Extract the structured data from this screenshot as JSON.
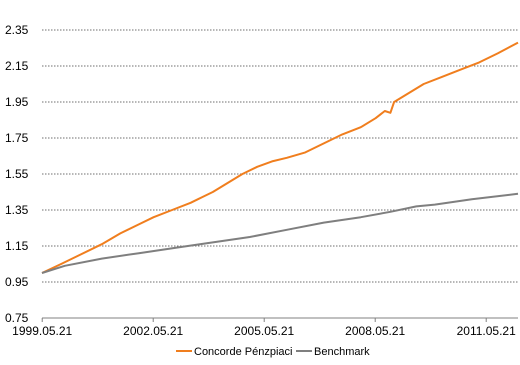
{
  "chart_data": {
    "type": "line",
    "title": "",
    "xlabel": "",
    "ylabel": "",
    "x_ticks": [
      "1999.05.21",
      "2002.05.21",
      "2005.05.21",
      "2008.05.21",
      "2011.05.21"
    ],
    "y_ticks": [
      "0.75",
      "0.95",
      "1.15",
      "1.35",
      "1.55",
      "1.75",
      "1.95",
      "2.15",
      "2.35"
    ],
    "xlim": [
      1999.385,
      2012.25
    ],
    "ylim": [
      0.75,
      2.45
    ],
    "grid": true,
    "grid_style": "dotted-horizontal",
    "legend_position": "bottom",
    "series": [
      {
        "name": "Concorde Pénzpiaci",
        "color": "#F07E1E",
        "points": [
          [
            1999.385,
            1.0
          ],
          [
            1999.9,
            1.05
          ],
          [
            2000.4,
            1.1
          ],
          [
            2001.0,
            1.16
          ],
          [
            2001.5,
            1.22
          ],
          [
            2002.0,
            1.27
          ],
          [
            2002.4,
            1.31
          ],
          [
            2002.9,
            1.35
          ],
          [
            2003.4,
            1.39
          ],
          [
            2003.6,
            1.41
          ],
          [
            2003.7,
            1.42
          ],
          [
            2004.0,
            1.45
          ],
          [
            2004.4,
            1.5
          ],
          [
            2004.8,
            1.55
          ],
          [
            2005.2,
            1.59
          ],
          [
            2005.6,
            1.62
          ],
          [
            2006.0,
            1.64
          ],
          [
            2006.5,
            1.67
          ],
          [
            2007.0,
            1.72
          ],
          [
            2007.5,
            1.77
          ],
          [
            2008.0,
            1.81
          ],
          [
            2008.4,
            1.86
          ],
          [
            2008.65,
            1.9
          ],
          [
            2008.8,
            1.89
          ],
          [
            2008.9,
            1.95
          ],
          [
            2009.3,
            2.0
          ],
          [
            2009.7,
            2.05
          ],
          [
            2010.2,
            2.09
          ],
          [
            2010.7,
            2.13
          ],
          [
            2011.2,
            2.17
          ],
          [
            2011.7,
            2.22
          ],
          [
            2012.25,
            2.28
          ]
        ]
      },
      {
        "name": "Benchmark",
        "color": "#7F7F7F",
        "points": [
          [
            1999.385,
            1.0
          ],
          [
            2000.0,
            1.04
          ],
          [
            2001.0,
            1.08
          ],
          [
            2002.0,
            1.11
          ],
          [
            2003.0,
            1.14
          ],
          [
            2004.0,
            1.17
          ],
          [
            2005.0,
            1.2
          ],
          [
            2006.0,
            1.24
          ],
          [
            2007.0,
            1.28
          ],
          [
            2008.0,
            1.31
          ],
          [
            2008.8,
            1.34
          ],
          [
            2009.5,
            1.37
          ],
          [
            2010.0,
            1.38
          ],
          [
            2011.0,
            1.41
          ],
          [
            2012.25,
            1.44
          ]
        ]
      }
    ]
  }
}
